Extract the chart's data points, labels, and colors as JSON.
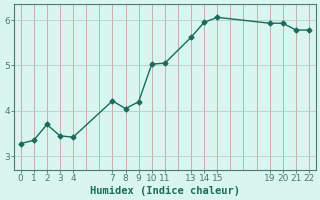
{
  "xlabel": "Humidex (Indice chaleur)",
  "x": [
    0,
    1,
    2,
    3,
    4,
    7,
    8,
    9,
    10,
    11,
    13,
    14,
    15,
    19,
    20,
    21,
    22
  ],
  "y": [
    3.28,
    3.35,
    3.7,
    3.45,
    3.42,
    4.22,
    4.05,
    4.2,
    5.03,
    5.05,
    5.62,
    5.95,
    6.06,
    5.93,
    5.93,
    5.78,
    5.78
  ],
  "line_color": "#1a6b5a",
  "bg_color": "#d8f5ef",
  "grid_color_v": "#c8a0a0",
  "grid_color_h": "#b0d0c8",
  "axis_color": "#507870",
  "ylim": [
    2.7,
    6.35
  ],
  "xlim": [
    -0.5,
    22.5
  ],
  "yticks": [
    3,
    4,
    5,
    6
  ],
  "xticks_labels": [
    0,
    1,
    2,
    3,
    4,
    7,
    8,
    9,
    10,
    11,
    13,
    14,
    15,
    19,
    20,
    21,
    22
  ],
  "xticks_grid": [
    0,
    1,
    2,
    3,
    4,
    5,
    6,
    7,
    8,
    9,
    10,
    11,
    12,
    13,
    14,
    15,
    16,
    17,
    18,
    19,
    20,
    21,
    22
  ],
  "tick_fontsize": 6.5,
  "xlabel_fontsize": 7.5,
  "marker": "D",
  "markersize": 2.5,
  "linewidth": 1.0
}
